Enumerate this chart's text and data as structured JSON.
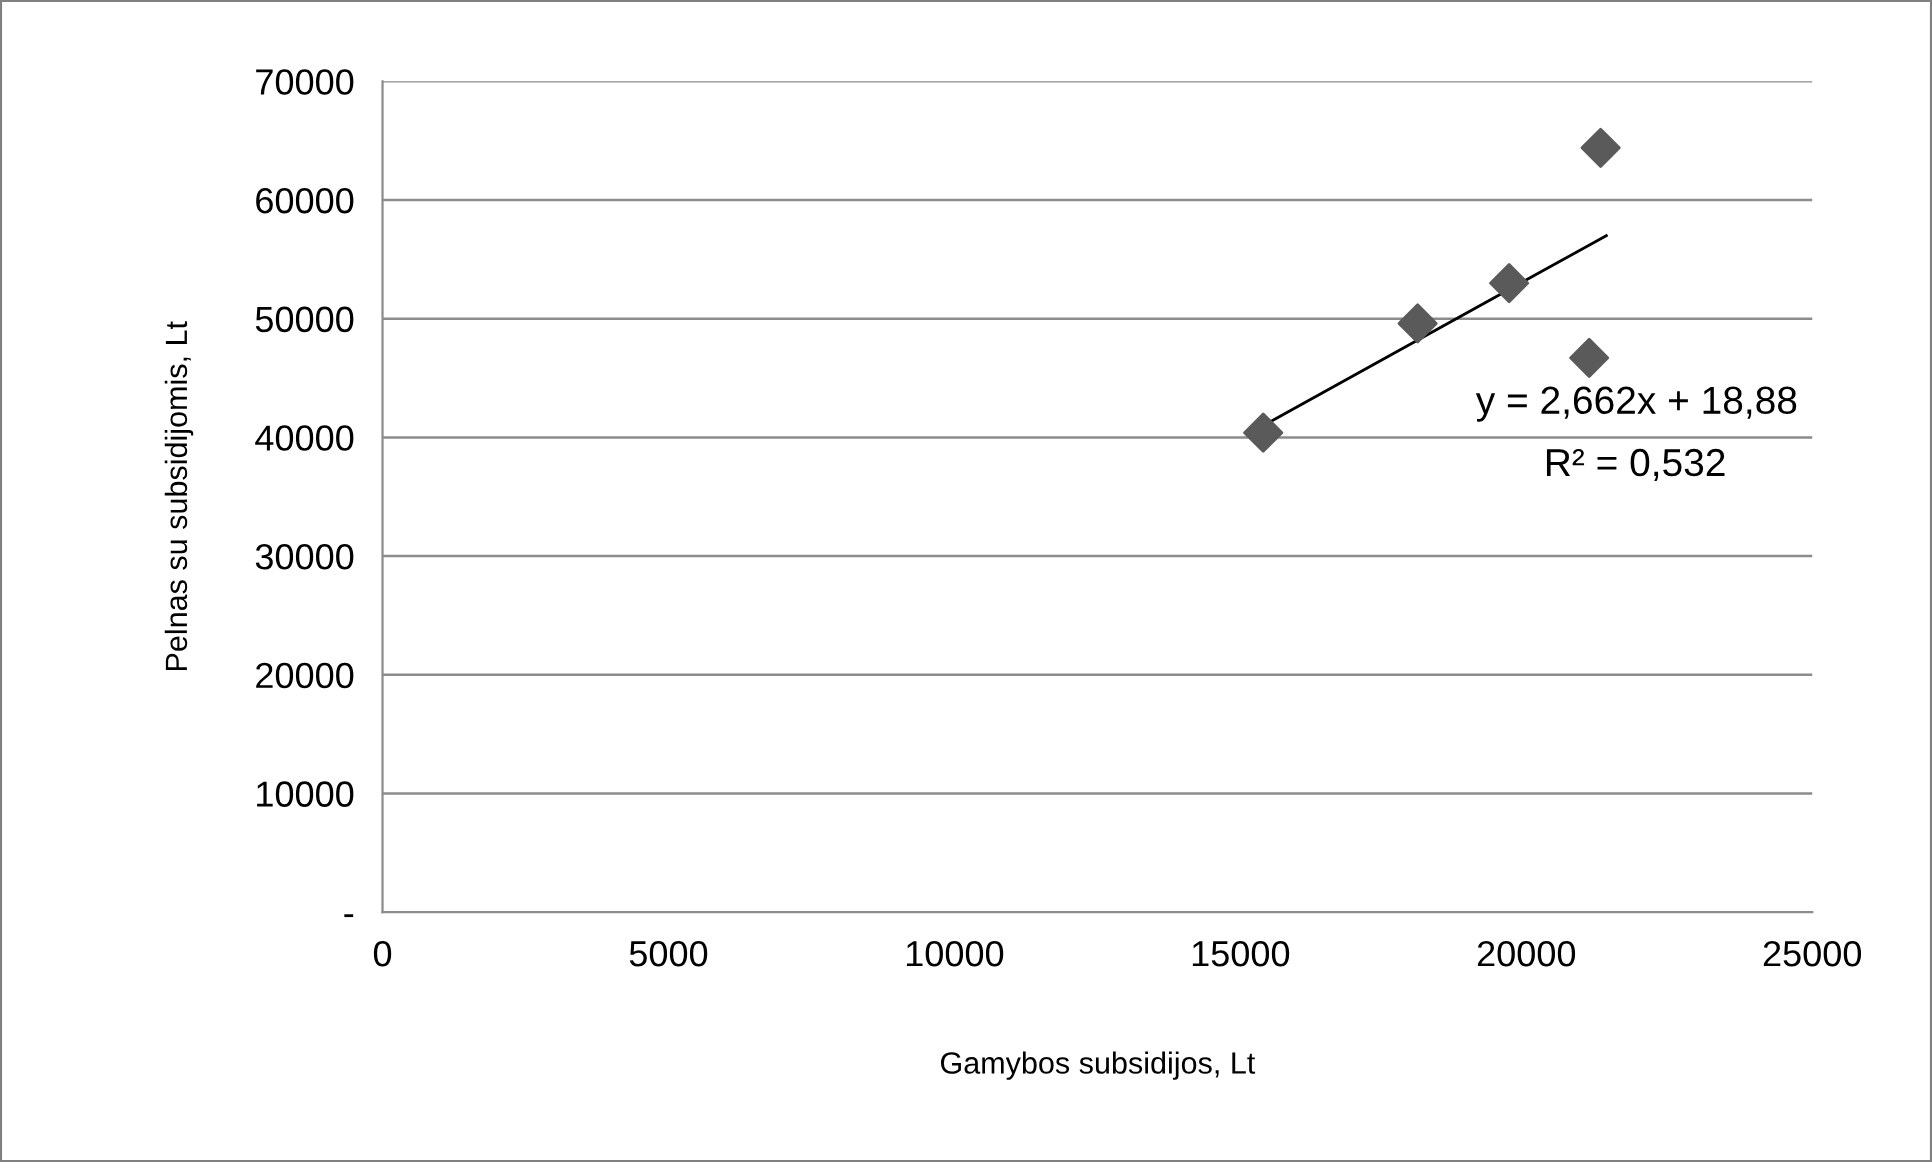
{
  "chart_data": {
    "type": "scatter",
    "xlabel": "Gamybos subsidijos, Lt",
    "ylabel": "Pelnas su subsidijomis, Lt",
    "series": [
      {
        "color": "#5a5a5a",
        "marker": "diamond",
        "x": [
          15400,
          18100,
          19700,
          21100,
          21300
        ],
        "values": [
          40400,
          49600,
          53000,
          46700,
          64400
        ]
      },
      {
        "type": "line",
        "color": "#000000",
        "marker": "none",
        "line_style": "solid",
        "x": [
          15400,
          21400
        ],
        "values": [
          41000,
          57000
        ]
      }
    ],
    "annotations": [
      "y = 2,662x + 18,88",
      "R² = 0,532"
    ],
    "xlim": [
      0,
      25000
    ],
    "xticks": [
      0,
      5000,
      10000,
      15000,
      20000,
      25000
    ],
    "ylim": [
      0,
      70000
    ],
    "yticks": [
      {
        "value": 0,
        "label": "-"
      },
      10000,
      20000,
      30000,
      40000,
      50000,
      60000,
      70000
    ],
    "grid": "y",
    "legend": false
  }
}
